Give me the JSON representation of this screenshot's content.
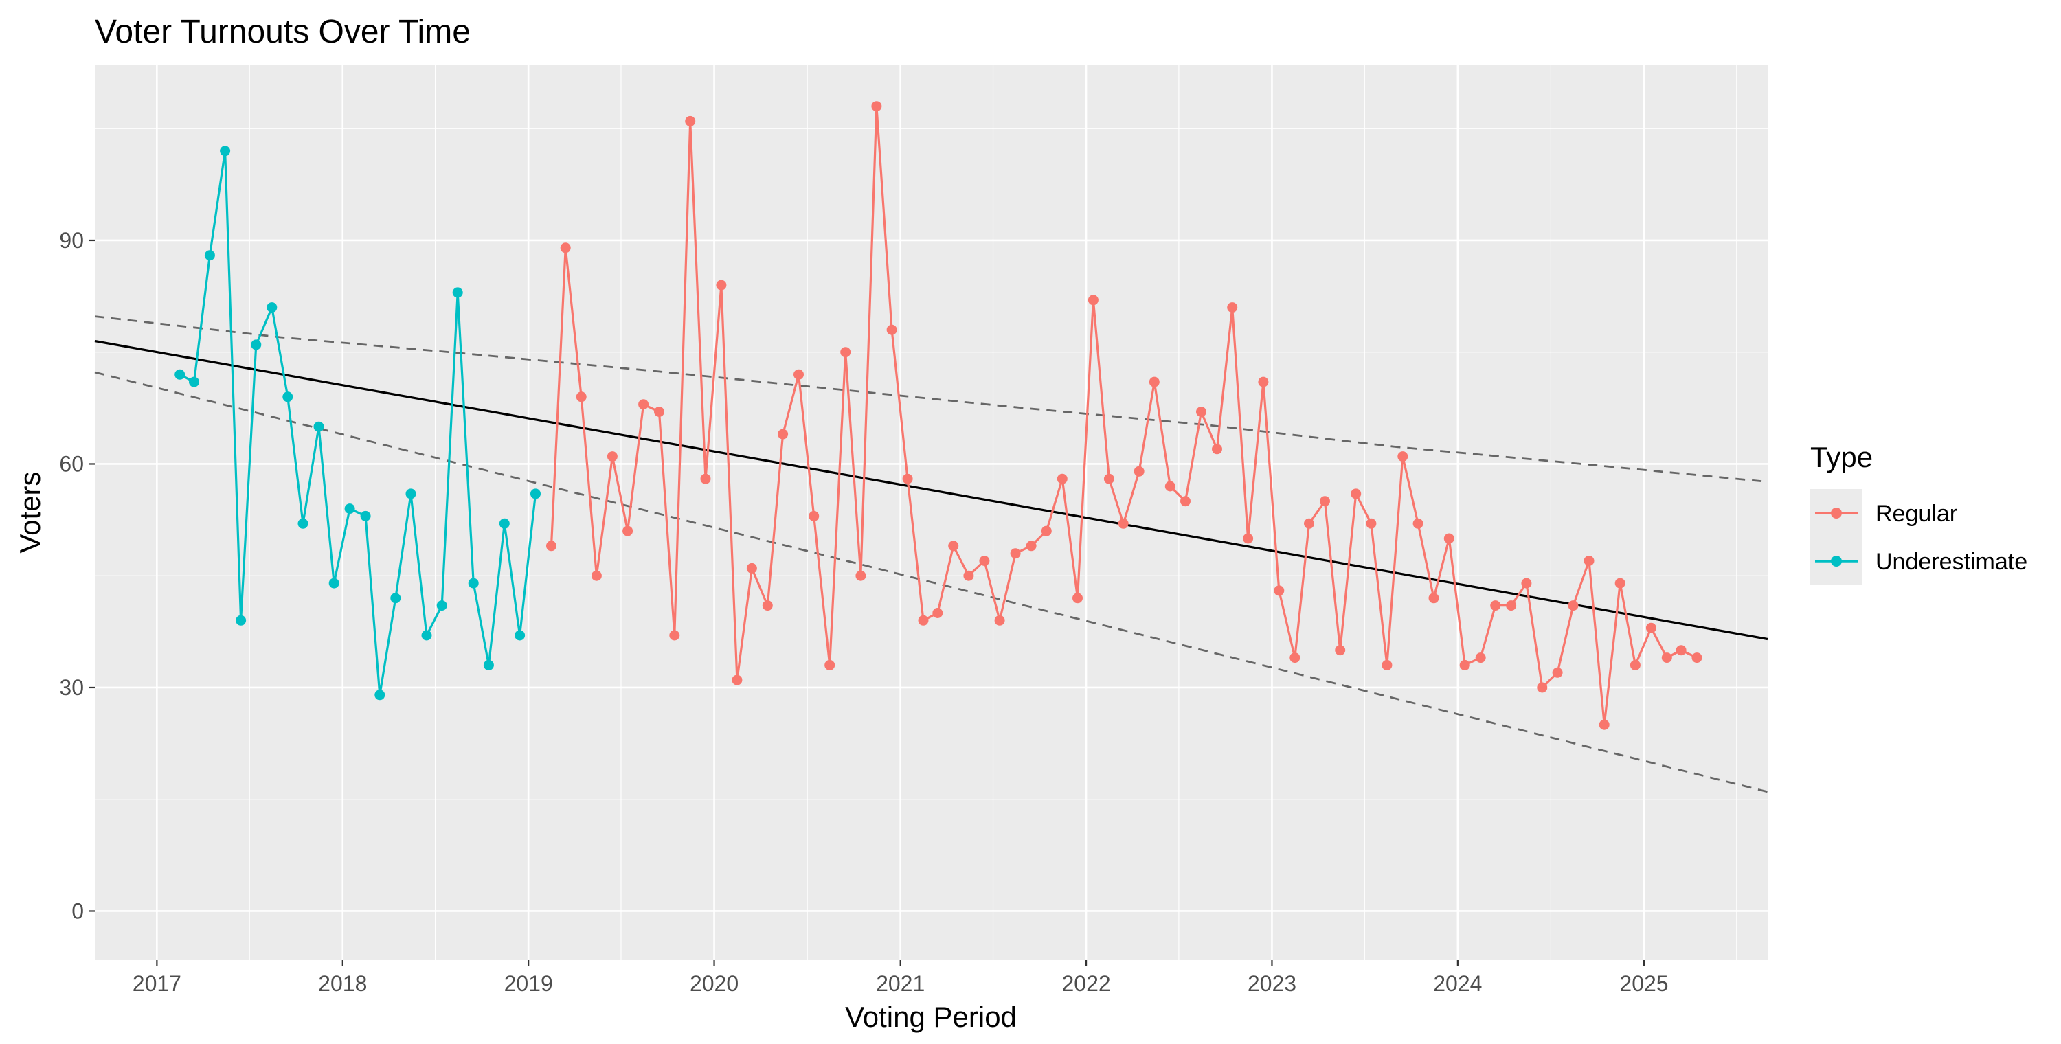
{
  "chart_data": {
    "type": "line",
    "title": "Voter Turnouts Over Time",
    "xlabel": "Voting Period",
    "ylabel": "Voters",
    "xlim": [
      "2016-09-01",
      "2025-09-01"
    ],
    "ylim": [
      -6.5,
      113.5
    ],
    "x_ticks": [
      "2017",
      "2018",
      "2019",
      "2020",
      "2021",
      "2022",
      "2023",
      "2024",
      "2025"
    ],
    "y_ticks": [
      0,
      30,
      60,
      90
    ],
    "grid": true,
    "background": "#ebebeb",
    "legend": {
      "title": "Type",
      "position": "right",
      "entries": [
        {
          "label": "Regular",
          "color": "#f8766d"
        },
        {
          "label": "Underestimate",
          "color": "#00bfc4"
        }
      ]
    },
    "series": [
      {
        "name": "Underestimate",
        "color": "#00bfc4",
        "points": [
          {
            "x": "2017-02",
            "y": 72
          },
          {
            "x": "2017-03",
            "y": 71
          },
          {
            "x": "2017-04",
            "y": 88
          },
          {
            "x": "2017-05",
            "y": 102
          },
          {
            "x": "2017-06",
            "y": 39
          },
          {
            "x": "2017-07",
            "y": 76
          },
          {
            "x": "2017-08",
            "y": 81
          },
          {
            "x": "2017-09",
            "y": 69
          },
          {
            "x": "2017-10",
            "y": 52
          },
          {
            "x": "2017-11",
            "y": 65
          },
          {
            "x": "2017-12",
            "y": 44
          },
          {
            "x": "2018-01",
            "y": 54
          },
          {
            "x": "2018-02",
            "y": 53
          },
          {
            "x": "2018-03",
            "y": 29
          },
          {
            "x": "2018-04",
            "y": 42
          },
          {
            "x": "2018-05",
            "y": 56
          },
          {
            "x": "2018-06",
            "y": 37
          },
          {
            "x": "2018-07",
            "y": 41
          },
          {
            "x": "2018-08",
            "y": 83
          },
          {
            "x": "2018-09",
            "y": 44
          },
          {
            "x": "2018-10",
            "y": 33
          },
          {
            "x": "2018-11",
            "y": 52
          },
          {
            "x": "2018-12",
            "y": 37
          },
          {
            "x": "2019-01",
            "y": 56
          }
        ]
      },
      {
        "name": "Regular",
        "color": "#f8766d",
        "points": [
          {
            "x": "2019-02",
            "y": 49
          },
          {
            "x": "2019-03",
            "y": 89
          },
          {
            "x": "2019-04",
            "y": 69
          },
          {
            "x": "2019-05",
            "y": 45
          },
          {
            "x": "2019-06",
            "y": 61
          },
          {
            "x": "2019-07",
            "y": 51
          },
          {
            "x": "2019-08",
            "y": 68
          },
          {
            "x": "2019-09",
            "y": 67
          },
          {
            "x": "2019-10",
            "y": 37
          },
          {
            "x": "2019-11",
            "y": 106
          },
          {
            "x": "2019-12",
            "y": 58
          },
          {
            "x": "2020-01",
            "y": 84
          },
          {
            "x": "2020-02",
            "y": 31
          },
          {
            "x": "2020-03",
            "y": 46
          },
          {
            "x": "2020-04",
            "y": 41
          },
          {
            "x": "2020-05",
            "y": 64
          },
          {
            "x": "2020-06",
            "y": 72
          },
          {
            "x": "2020-07",
            "y": 53
          },
          {
            "x": "2020-08",
            "y": 33
          },
          {
            "x": "2020-09",
            "y": 75
          },
          {
            "x": "2020-10",
            "y": 45
          },
          {
            "x": "2020-11",
            "y": 108
          },
          {
            "x": "2020-12",
            "y": 78
          },
          {
            "x": "2021-01",
            "y": 58
          },
          {
            "x": "2021-02",
            "y": 39
          },
          {
            "x": "2021-03",
            "y": 40
          },
          {
            "x": "2021-04",
            "y": 49
          },
          {
            "x": "2021-05",
            "y": 45
          },
          {
            "x": "2021-06",
            "y": 47
          },
          {
            "x": "2021-07",
            "y": 39
          },
          {
            "x": "2021-08",
            "y": 48
          },
          {
            "x": "2021-09",
            "y": 49
          },
          {
            "x": "2021-10",
            "y": 51
          },
          {
            "x": "2021-11",
            "y": 58
          },
          {
            "x": "2021-12",
            "y": 42
          },
          {
            "x": "2022-01",
            "y": 82
          },
          {
            "x": "2022-02",
            "y": 58
          },
          {
            "x": "2022-03",
            "y": 52
          },
          {
            "x": "2022-04",
            "y": 59
          },
          {
            "x": "2022-05",
            "y": 71
          },
          {
            "x": "2022-06",
            "y": 57
          },
          {
            "x": "2022-07",
            "y": 55
          },
          {
            "x": "2022-08",
            "y": 67
          },
          {
            "x": "2022-09",
            "y": 62
          },
          {
            "x": "2022-10",
            "y": 81
          },
          {
            "x": "2022-11",
            "y": 50
          },
          {
            "x": "2022-12",
            "y": 71
          },
          {
            "x": "2023-01",
            "y": 43
          },
          {
            "x": "2023-02",
            "y": 34
          },
          {
            "x": "2023-03",
            "y": 52
          },
          {
            "x": "2023-04",
            "y": 55
          },
          {
            "x": "2023-05",
            "y": 35
          },
          {
            "x": "2023-06",
            "y": 56
          },
          {
            "x": "2023-07",
            "y": 52
          },
          {
            "x": "2023-08",
            "y": 33
          },
          {
            "x": "2023-09",
            "y": 61
          },
          {
            "x": "2023-10",
            "y": 52
          },
          {
            "x": "2023-11",
            "y": 42
          },
          {
            "x": "2023-12",
            "y": 50
          },
          {
            "x": "2024-01",
            "y": 33
          },
          {
            "x": "2024-02",
            "y": 34
          },
          {
            "x": "2024-03",
            "y": 41
          },
          {
            "x": "2024-04",
            "y": 41
          },
          {
            "x": "2024-05",
            "y": 44
          },
          {
            "x": "2024-06",
            "y": 30
          },
          {
            "x": "2024-07",
            "y": 32
          },
          {
            "x": "2024-08",
            "y": 41
          },
          {
            "x": "2024-09",
            "y": 47
          },
          {
            "x": "2024-10",
            "y": 25
          },
          {
            "x": "2024-11",
            "y": 44
          },
          {
            "x": "2024-12",
            "y": 33
          },
          {
            "x": "2025-01",
            "y": 38
          },
          {
            "x": "2025-02",
            "y": 34
          },
          {
            "x": "2025-03",
            "y": 35
          },
          {
            "x": "2025-04",
            "y": 34
          }
        ]
      }
    ],
    "trend_line": {
      "style": "solid",
      "color": "#000000",
      "points": [
        {
          "x": "2016-09-01",
          "y": 76.5
        },
        {
          "x": "2025-09-01",
          "y": 36.5
        }
      ]
    },
    "upper_bound": {
      "style": "dashed",
      "color": "#666666",
      "points": [
        {
          "x": "2016-09-01",
          "y": 79.8
        },
        {
          "x": "2017-09-01",
          "y": 77.0
        },
        {
          "x": "2018-09-01",
          "y": 74.8
        },
        {
          "x": "2019-09-01",
          "y": 72.5
        },
        {
          "x": "2020-09-01",
          "y": 70.0
        },
        {
          "x": "2021-09-01",
          "y": 67.5
        },
        {
          "x": "2022-09-01",
          "y": 65.2
        },
        {
          "x": "2023-09-01",
          "y": 62.3
        },
        {
          "x": "2024-09-01",
          "y": 60.0
        },
        {
          "x": "2025-09-01",
          "y": 57.6
        }
      ]
    },
    "lower_bound": {
      "style": "dashed",
      "color": "#666666",
      "points": [
        {
          "x": "2016-09-01",
          "y": 72.3
        },
        {
          "x": "2025-09-01",
          "y": 16.0
        }
      ]
    }
  }
}
